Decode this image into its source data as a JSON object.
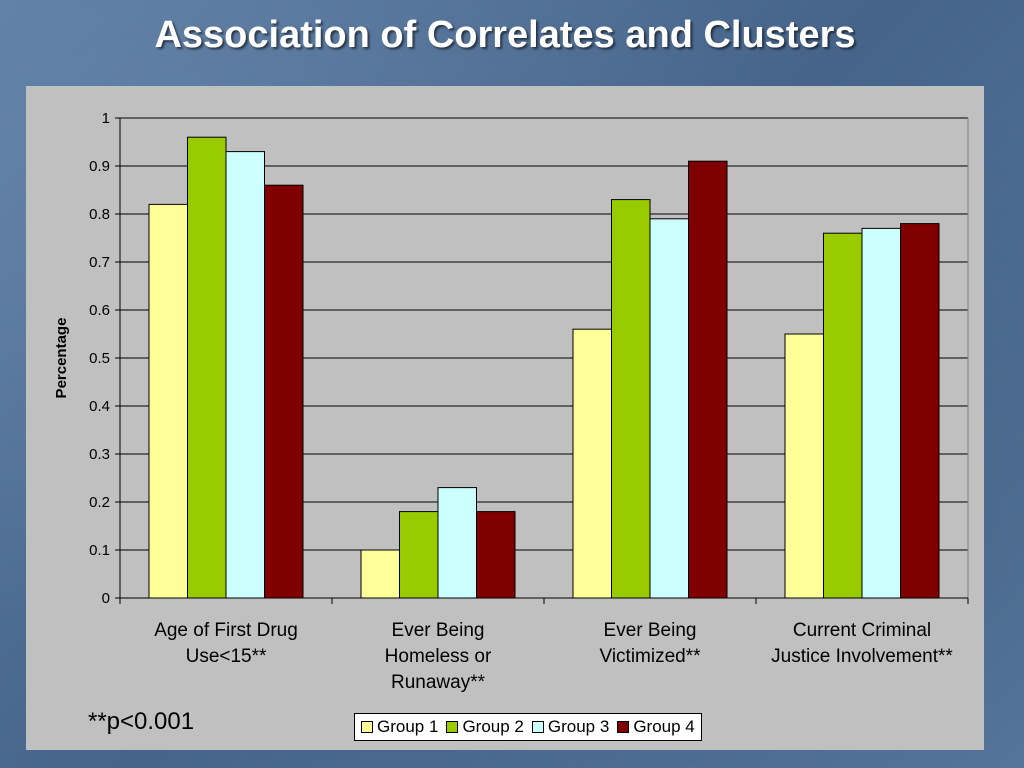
{
  "slide": {
    "title": "Association of Correlates and Clusters",
    "footnote": "**p<0.001"
  },
  "chart_data": {
    "type": "bar",
    "ylabel": "Percentage",
    "xlabel": "",
    "ylim": [
      0,
      1
    ],
    "yticks": [
      "0",
      "0.1",
      "0.2",
      "0.3",
      "0.4",
      "0.5",
      "0.6",
      "0.7",
      "0.8",
      "0.9",
      "1"
    ],
    "grid": true,
    "legend_position": "bottom",
    "categories": [
      [
        "Age of First Drug",
        "Use<15**"
      ],
      [
        "Ever Being",
        "Homeless or",
        "Runaway**"
      ],
      [
        "Ever Being",
        "Victimized**"
      ],
      [
        "Current Criminal",
        "Justice Involvement**"
      ]
    ],
    "series": [
      {
        "name": "Group 1",
        "color": "#ffff99",
        "values": [
          0.82,
          0.1,
          0.56,
          0.55
        ]
      },
      {
        "name": "Group 2",
        "color": "#99cc00",
        "values": [
          0.96,
          0.18,
          0.83,
          0.76
        ]
      },
      {
        "name": "Group 3",
        "color": "#ccffff",
        "values": [
          0.93,
          0.23,
          0.79,
          0.77
        ]
      },
      {
        "name": "Group 4",
        "color": "#800000",
        "values": [
          0.86,
          0.18,
          0.91,
          0.78
        ]
      }
    ]
  }
}
